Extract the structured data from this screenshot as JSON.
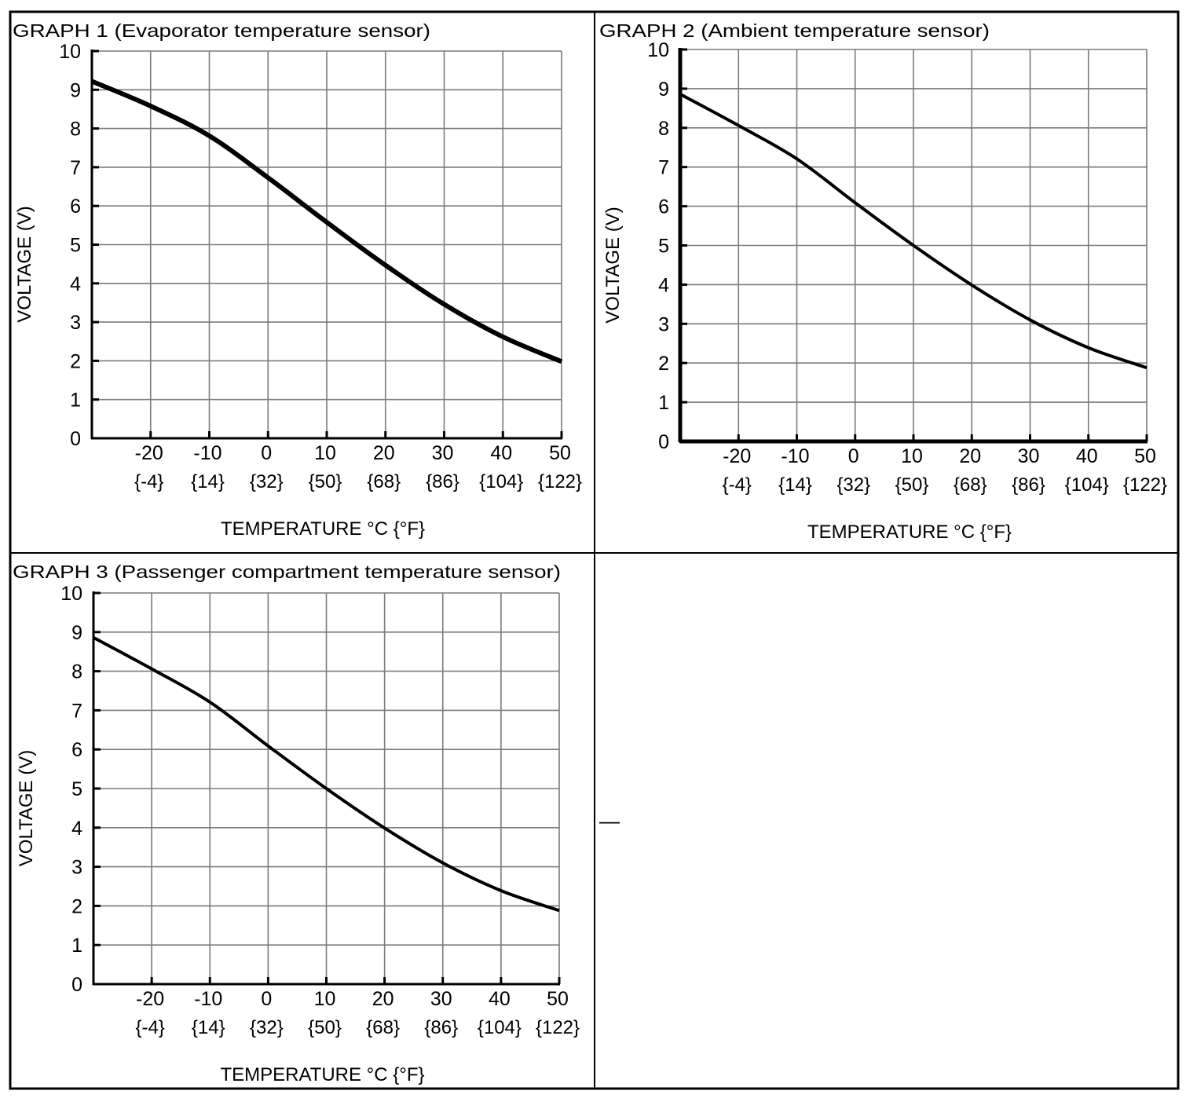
{
  "chart_data": [
    {
      "type": "line",
      "title": "GRAPH 1 (Evaporator temperature sensor)",
      "xlabel": "TEMPERATURE   °C {°F}",
      "ylabel": "VOLTAGE (V)",
      "xlim": [
        -30,
        50
      ],
      "ylim": [
        0,
        10
      ],
      "grid": true,
      "x_ticks": [
        -20,
        -10,
        0,
        10,
        20,
        30,
        40,
        50
      ],
      "x_tick_labels": [
        "-20",
        "-10",
        "0",
        "10",
        "20",
        "30",
        "40",
        "50"
      ],
      "x_tick_labels_f": [
        "{-4}",
        "{14}",
        "{32}",
        "{50}",
        "{68}",
        "{86}",
        "{104}",
        "{122}"
      ],
      "y_ticks": [
        0,
        1,
        2,
        3,
        4,
        5,
        6,
        7,
        8,
        9,
        10
      ],
      "y_tick_labels": [
        "0",
        "1",
        "2",
        "3",
        "4",
        "5",
        "6",
        "7",
        "8",
        "9",
        "10"
      ],
      "series": [
        {
          "name": "Evaporator temperature sensor",
          "x": [
            -30,
            -20,
            -10,
            0,
            10,
            20,
            30,
            40,
            50
          ],
          "y": [
            9.22,
            8.58,
            7.81,
            6.73,
            5.58,
            4.47,
            3.46,
            2.62,
            1.98
          ]
        }
      ]
    },
    {
      "type": "line",
      "title": "GRAPH 2 (Ambient temperature sensor)",
      "xlabel": "TEMPERATURE   °C {°F}",
      "ylabel": "VOLTAGE (V)",
      "xlim": [
        -30,
        50
      ],
      "ylim": [
        0,
        10
      ],
      "grid": true,
      "x_ticks": [
        -20,
        -10,
        0,
        10,
        20,
        30,
        40,
        50
      ],
      "x_tick_labels": [
        "-20",
        "-10",
        "0",
        "10",
        "20",
        "30",
        "40",
        "50"
      ],
      "x_tick_labels_f": [
        "{-4}",
        "{14}",
        "{32}",
        "{50}",
        "{68}",
        "{86}",
        "{104}",
        "{122}"
      ],
      "y_ticks": [
        0,
        1,
        2,
        3,
        4,
        5,
        6,
        7,
        8,
        9,
        10
      ],
      "y_tick_labels": [
        "0",
        "1",
        "2",
        "3",
        "4",
        "5",
        "6",
        "7",
        "8",
        "9",
        "10"
      ],
      "series": [
        {
          "name": "Ambient temperature sensor",
          "x": [
            -30,
            -20,
            -10,
            0,
            10,
            20,
            30,
            40,
            50
          ],
          "y": [
            8.86,
            8.06,
            7.21,
            6.09,
            5.0,
            3.99,
            3.1,
            2.39,
            1.88
          ]
        }
      ]
    },
    {
      "type": "line",
      "title": "GRAPH 3 (Passenger compartment temperature sensor)",
      "xlabel": "TEMPERATURE   °C {°F}",
      "ylabel": "VOLTAGE (V)",
      "xlim": [
        -30,
        50
      ],
      "ylim": [
        0,
        10
      ],
      "grid": true,
      "x_ticks": [
        -20,
        -10,
        0,
        10,
        20,
        30,
        40,
        50
      ],
      "x_tick_labels": [
        "-20",
        "-10",
        "0",
        "10",
        "20",
        "30",
        "40",
        "50"
      ],
      "x_tick_labels_f": [
        "{-4}",
        "{14}",
        "{32}",
        "{50}",
        "{68}",
        "{86}",
        "{104}",
        "{122}"
      ],
      "y_ticks": [
        0,
        1,
        2,
        3,
        4,
        5,
        6,
        7,
        8,
        9,
        10
      ],
      "y_tick_labels": [
        "0",
        "1",
        "2",
        "3",
        "4",
        "5",
        "6",
        "7",
        "8",
        "9",
        "10"
      ],
      "series": [
        {
          "name": "Passenger compartment temperature sensor",
          "x": [
            -30,
            -20,
            -10,
            0,
            10,
            20,
            30,
            40,
            50
          ],
          "y": [
            8.86,
            8.06,
            7.21,
            6.09,
            5.0,
            3.99,
            3.1,
            2.39,
            1.88
          ]
        }
      ]
    }
  ],
  "empty_cell_mark": "—"
}
